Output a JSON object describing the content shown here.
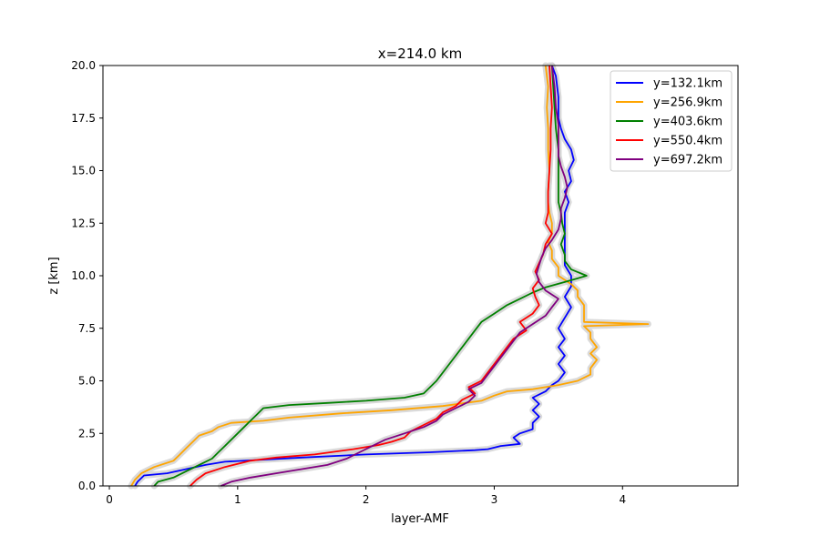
{
  "chart_data": {
    "type": "line",
    "title": "x=214.0 km",
    "xlabel": "layer-AMF",
    "ylabel": "z [km]",
    "xlim": [
      -0.05,
      4.9
    ],
    "ylim": [
      0,
      20
    ],
    "xticks": [
      0,
      1,
      2,
      3,
      4
    ],
    "xtick_labels": [
      "0",
      "1",
      "2",
      "3",
      "4"
    ],
    "yticks": [
      0,
      2.5,
      5,
      7.5,
      10,
      12.5,
      15,
      17.5,
      20
    ],
    "ytick_labels": [
      "0.0",
      "2.5",
      "5.0",
      "7.5",
      "10.0",
      "12.5",
      "15.0",
      "17.5",
      "20.0"
    ],
    "grid": false,
    "legend_position": "top-right",
    "uncertainty_band_color": "#d3d3d3",
    "series": [
      {
        "name": "y=132.1km",
        "color": "#0000ff",
        "points": [
          [
            0.2,
            0.0
          ],
          [
            0.22,
            0.2
          ],
          [
            0.27,
            0.5
          ],
          [
            0.45,
            0.6
          ],
          [
            0.6,
            0.8
          ],
          [
            0.75,
            1.0
          ],
          [
            0.9,
            1.15
          ],
          [
            1.2,
            1.25
          ],
          [
            1.5,
            1.35
          ],
          [
            2.0,
            1.5
          ],
          [
            2.5,
            1.6
          ],
          [
            2.85,
            1.7
          ],
          [
            2.95,
            1.75
          ],
          [
            3.05,
            1.9
          ],
          [
            3.2,
            2.0
          ],
          [
            3.15,
            2.3
          ],
          [
            3.2,
            2.5
          ],
          [
            3.3,
            2.7
          ],
          [
            3.3,
            3.0
          ],
          [
            3.35,
            3.3
          ],
          [
            3.3,
            3.6
          ],
          [
            3.35,
            3.9
          ],
          [
            3.3,
            4.2
          ],
          [
            3.4,
            4.5
          ],
          [
            3.45,
            4.8
          ],
          [
            3.5,
            5.0
          ],
          [
            3.55,
            5.4
          ],
          [
            3.5,
            5.8
          ],
          [
            3.55,
            6.2
          ],
          [
            3.5,
            6.6
          ],
          [
            3.55,
            7.0
          ],
          [
            3.5,
            7.5
          ],
          [
            3.55,
            8.0
          ],
          [
            3.6,
            8.5
          ],
          [
            3.55,
            9.0
          ],
          [
            3.6,
            9.5
          ],
          [
            3.6,
            10.0
          ],
          [
            3.55,
            10.5
          ],
          [
            3.55,
            11.0
          ],
          [
            3.55,
            11.5
          ],
          [
            3.55,
            12.0
          ],
          [
            3.55,
            12.5
          ],
          [
            3.55,
            13.0
          ],
          [
            3.58,
            13.5
          ],
          [
            3.55,
            14.0
          ],
          [
            3.6,
            14.5
          ],
          [
            3.58,
            15.0
          ],
          [
            3.62,
            15.5
          ],
          [
            3.6,
            16.0
          ],
          [
            3.55,
            16.5
          ],
          [
            3.52,
            17.0
          ],
          [
            3.5,
            17.5
          ],
          [
            3.5,
            18.5
          ],
          [
            3.48,
            19.5
          ],
          [
            3.45,
            20.0
          ]
        ]
      },
      {
        "name": "y=256.9km",
        "color": "#ffa500",
        "points": [
          [
            0.17,
            0.0
          ],
          [
            0.2,
            0.3
          ],
          [
            0.25,
            0.6
          ],
          [
            0.35,
            0.9
          ],
          [
            0.5,
            1.2
          ],
          [
            0.55,
            1.5
          ],
          [
            0.6,
            1.8
          ],
          [
            0.65,
            2.1
          ],
          [
            0.7,
            2.4
          ],
          [
            0.8,
            2.6
          ],
          [
            0.85,
            2.8
          ],
          [
            0.95,
            3.0
          ],
          [
            1.2,
            3.1
          ],
          [
            1.4,
            3.25
          ],
          [
            1.8,
            3.45
          ],
          [
            2.2,
            3.6
          ],
          [
            2.6,
            3.8
          ],
          [
            2.9,
            4.05
          ],
          [
            3.0,
            4.3
          ],
          [
            3.1,
            4.5
          ],
          [
            3.3,
            4.6
          ],
          [
            3.5,
            4.8
          ],
          [
            3.65,
            5.0
          ],
          [
            3.75,
            5.3
          ],
          [
            3.75,
            5.6
          ],
          [
            3.8,
            6.0
          ],
          [
            3.75,
            6.3
          ],
          [
            3.8,
            6.6
          ],
          [
            3.75,
            7.0
          ],
          [
            3.75,
            7.3
          ],
          [
            3.7,
            7.6
          ],
          [
            4.2,
            7.7
          ],
          [
            3.7,
            7.8
          ],
          [
            3.7,
            8.2
          ],
          [
            3.7,
            8.6
          ],
          [
            3.65,
            9.0
          ],
          [
            3.65,
            9.3
          ],
          [
            3.6,
            9.6
          ],
          [
            3.55,
            9.8
          ],
          [
            3.5,
            10.0
          ],
          [
            3.5,
            10.4
          ],
          [
            3.45,
            10.8
          ],
          [
            3.45,
            11.2
          ],
          [
            3.42,
            11.6
          ],
          [
            3.45,
            12.0
          ],
          [
            3.45,
            12.5
          ],
          [
            3.43,
            13.0
          ],
          [
            3.42,
            13.5
          ],
          [
            3.42,
            14.0
          ],
          [
            3.43,
            15.0
          ],
          [
            3.42,
            16.0
          ],
          [
            3.42,
            17.0
          ],
          [
            3.41,
            18.0
          ],
          [
            3.42,
            19.0
          ],
          [
            3.4,
            20.0
          ]
        ]
      },
      {
        "name": "y=403.6km",
        "color": "#008000",
        "points": [
          [
            0.35,
            0.0
          ],
          [
            0.38,
            0.2
          ],
          [
            0.5,
            0.4
          ],
          [
            0.6,
            0.7
          ],
          [
            0.7,
            1.0
          ],
          [
            0.8,
            1.3
          ],
          [
            0.85,
            1.6
          ],
          [
            0.9,
            1.9
          ],
          [
            0.95,
            2.2
          ],
          [
            1.0,
            2.5
          ],
          [
            1.05,
            2.8
          ],
          [
            1.1,
            3.1
          ],
          [
            1.15,
            3.4
          ],
          [
            1.2,
            3.7
          ],
          [
            1.4,
            3.85
          ],
          [
            1.7,
            3.95
          ],
          [
            2.0,
            4.05
          ],
          [
            2.3,
            4.2
          ],
          [
            2.45,
            4.4
          ],
          [
            2.5,
            4.7
          ],
          [
            2.55,
            5.0
          ],
          [
            2.6,
            5.4
          ],
          [
            2.65,
            5.8
          ],
          [
            2.7,
            6.2
          ],
          [
            2.75,
            6.6
          ],
          [
            2.8,
            7.0
          ],
          [
            2.85,
            7.4
          ],
          [
            2.9,
            7.8
          ],
          [
            3.0,
            8.2
          ],
          [
            3.1,
            8.6
          ],
          [
            3.2,
            8.9
          ],
          [
            3.3,
            9.2
          ],
          [
            3.4,
            9.45
          ],
          [
            3.55,
            9.7
          ],
          [
            3.72,
            10.0
          ],
          [
            3.6,
            10.3
          ],
          [
            3.55,
            10.7
          ],
          [
            3.55,
            11.0
          ],
          [
            3.52,
            11.5
          ],
          [
            3.55,
            12.0
          ],
          [
            3.53,
            12.5
          ],
          [
            3.52,
            13.0
          ],
          [
            3.5,
            13.5
          ],
          [
            3.5,
            14.0
          ],
          [
            3.5,
            15.0
          ],
          [
            3.5,
            16.0
          ],
          [
            3.48,
            17.0
          ],
          [
            3.47,
            18.0
          ],
          [
            3.46,
            19.0
          ],
          [
            3.45,
            20.0
          ]
        ]
      },
      {
        "name": "y=550.4km",
        "color": "#ff0000",
        "points": [
          [
            0.63,
            0.0
          ],
          [
            0.68,
            0.3
          ],
          [
            0.75,
            0.6
          ],
          [
            0.9,
            0.9
          ],
          [
            1.1,
            1.2
          ],
          [
            1.3,
            1.35
          ],
          [
            1.6,
            1.5
          ],
          [
            1.9,
            1.75
          ],
          [
            2.1,
            1.95
          ],
          [
            2.2,
            2.1
          ],
          [
            2.3,
            2.3
          ],
          [
            2.35,
            2.6
          ],
          [
            2.45,
            2.9
          ],
          [
            2.55,
            3.2
          ],
          [
            2.6,
            3.5
          ],
          [
            2.7,
            3.8
          ],
          [
            2.75,
            4.1
          ],
          [
            2.85,
            4.4
          ],
          [
            2.8,
            4.7
          ],
          [
            2.9,
            5.0
          ],
          [
            2.95,
            5.4
          ],
          [
            3.0,
            5.8
          ],
          [
            3.05,
            6.2
          ],
          [
            3.1,
            6.6
          ],
          [
            3.15,
            7.0
          ],
          [
            3.25,
            7.4
          ],
          [
            3.2,
            7.8
          ],
          [
            3.3,
            8.2
          ],
          [
            3.35,
            8.6
          ],
          [
            3.32,
            9.0
          ],
          [
            3.3,
            9.4
          ],
          [
            3.35,
            9.8
          ],
          [
            3.32,
            10.2
          ],
          [
            3.35,
            10.6
          ],
          [
            3.38,
            11.0
          ],
          [
            3.4,
            11.5
          ],
          [
            3.45,
            12.0
          ],
          [
            3.4,
            12.5
          ],
          [
            3.42,
            13.0
          ],
          [
            3.42,
            14.0
          ],
          [
            3.43,
            15.0
          ],
          [
            3.44,
            16.0
          ],
          [
            3.44,
            17.0
          ],
          [
            3.45,
            18.0
          ],
          [
            3.44,
            19.0
          ],
          [
            3.43,
            20.0
          ]
        ]
      },
      {
        "name": "y=697.2km",
        "color": "#800080",
        "points": [
          [
            0.87,
            0.0
          ],
          [
            0.95,
            0.2
          ],
          [
            1.1,
            0.4
          ],
          [
            1.3,
            0.6
          ],
          [
            1.5,
            0.8
          ],
          [
            1.7,
            1.0
          ],
          [
            1.85,
            1.3
          ],
          [
            1.95,
            1.6
          ],
          [
            2.05,
            1.9
          ],
          [
            2.15,
            2.2
          ],
          [
            2.3,
            2.5
          ],
          [
            2.45,
            2.8
          ],
          [
            2.55,
            3.1
          ],
          [
            2.6,
            3.4
          ],
          [
            2.7,
            3.7
          ],
          [
            2.8,
            4.0
          ],
          [
            2.85,
            4.3
          ],
          [
            2.8,
            4.6
          ],
          [
            2.9,
            4.9
          ],
          [
            2.95,
            5.3
          ],
          [
            3.0,
            5.7
          ],
          [
            3.05,
            6.1
          ],
          [
            3.1,
            6.5
          ],
          [
            3.15,
            6.9
          ],
          [
            3.2,
            7.3
          ],
          [
            3.3,
            7.7
          ],
          [
            3.4,
            8.1
          ],
          [
            3.45,
            8.5
          ],
          [
            3.5,
            8.9
          ],
          [
            3.4,
            9.3
          ],
          [
            3.35,
            9.7
          ],
          [
            3.33,
            10.1
          ],
          [
            3.35,
            10.5
          ],
          [
            3.37,
            10.9
          ],
          [
            3.4,
            11.3
          ],
          [
            3.45,
            11.7
          ],
          [
            3.5,
            12.2
          ],
          [
            3.52,
            12.7
          ],
          [
            3.52,
            13.2
          ],
          [
            3.55,
            13.7
          ],
          [
            3.57,
            14.2
          ],
          [
            3.55,
            14.7
          ],
          [
            3.52,
            15.2
          ],
          [
            3.5,
            15.7
          ],
          [
            3.5,
            16.2
          ],
          [
            3.5,
            16.7
          ],
          [
            3.5,
            17.2
          ],
          [
            3.48,
            18.0
          ],
          [
            3.47,
            19.0
          ],
          [
            3.45,
            20.0
          ]
        ]
      }
    ]
  }
}
